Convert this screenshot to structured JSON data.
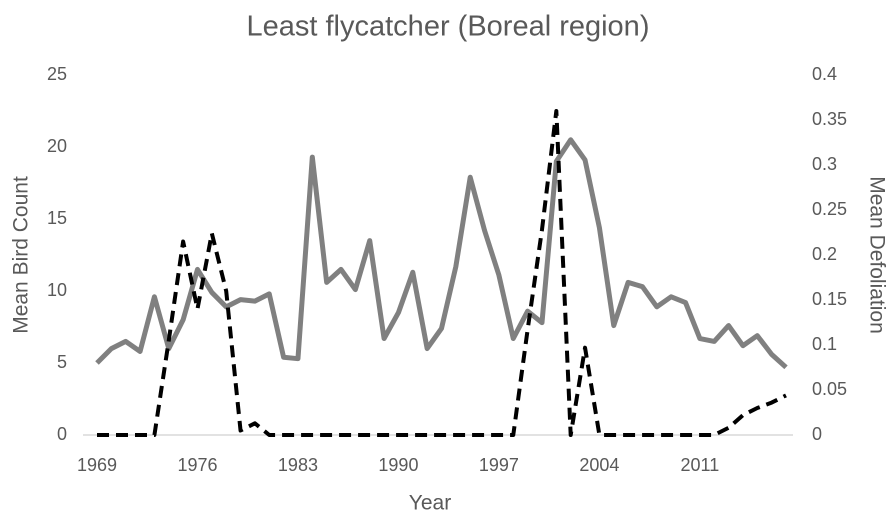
{
  "chart_data": {
    "type": "line",
    "title": "Least flycatcher (Boreal region)",
    "xlabel": "Year",
    "ylabel": "Mean Bird Count",
    "y2label": "Mean Defoliation",
    "x": [
      1969,
      1970,
      1971,
      1972,
      1973,
      1974,
      1975,
      1976,
      1977,
      1978,
      1979,
      1980,
      1981,
      1982,
      1983,
      1984,
      1985,
      1986,
      1987,
      1988,
      1989,
      1990,
      1991,
      1992,
      1993,
      1994,
      1995,
      1996,
      1997,
      1998,
      1999,
      2000,
      2001,
      2002,
      2003,
      2004,
      2005,
      2006,
      2007,
      2008,
      2009,
      2010,
      2011,
      2012,
      2013,
      2014,
      2015,
      2016,
      2017
    ],
    "series": [
      {
        "name": "Mean Bird Count",
        "color": "#808080",
        "axis": "y",
        "values": [
          5.0,
          6.0,
          6.5,
          5.8,
          9.6,
          6.0,
          8.0,
          11.5,
          9.9,
          8.9,
          9.4,
          9.3,
          9.8,
          5.4,
          5.3,
          19.3,
          10.6,
          11.5,
          10.1,
          13.5,
          6.7,
          8.5,
          11.3,
          6.0,
          7.4,
          11.7,
          17.9,
          14.2,
          11.1,
          6.7,
          8.6,
          7.8,
          19.0,
          20.5,
          19.1,
          14.4,
          7.6,
          10.6,
          10.3,
          8.9,
          9.6,
          9.2,
          6.7,
          6.5,
          7.6,
          6.2,
          6.9,
          5.6,
          4.7
        ]
      },
      {
        "name": "Mean Defoliation",
        "color": "#000000",
        "axis": "y2",
        "values": [
          0,
          0,
          0,
          0,
          0,
          0.105,
          0.215,
          0.14,
          0.224,
          0.16,
          0.005,
          0.013,
          0,
          0,
          0,
          0,
          0,
          0,
          0,
          0,
          0,
          0,
          0,
          0,
          0,
          0,
          0,
          0,
          0,
          0,
          0.117,
          0.228,
          0.36,
          0,
          0.097,
          0,
          0,
          0,
          0,
          0,
          0,
          0,
          0,
          0,
          0.008,
          0.022,
          0.03,
          0.036,
          0.044
        ]
      }
    ],
    "xlim": [
      1969,
      2017
    ],
    "xticks": [
      1969,
      1976,
      1983,
      1990,
      1997,
      2004,
      2011
    ],
    "ylim": [
      0,
      25
    ],
    "yticks": [
      0,
      5,
      10,
      15,
      20,
      25
    ],
    "y2lim": [
      0,
      0.4
    ],
    "y2ticks": [
      0,
      0.05,
      0.1,
      0.15,
      0.2,
      0.25,
      0.3,
      0.35,
      0.4
    ],
    "grid": false
  }
}
